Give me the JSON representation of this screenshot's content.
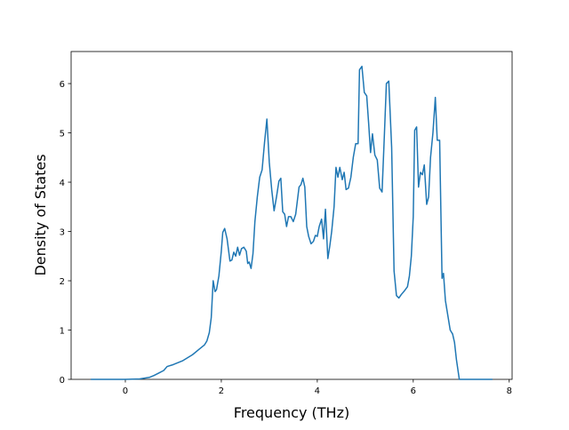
{
  "chart_data": {
    "type": "line",
    "xlabel": "Frequency (THz)",
    "ylabel": "Density of States",
    "xlim": [
      -1.13,
      8.06
    ],
    "ylim": [
      0,
      6.65
    ],
    "xticks": [
      0,
      2,
      4,
      6,
      8
    ],
    "yticks": [
      0,
      1,
      2,
      3,
      4,
      5,
      6
    ],
    "x": [
      -0.72,
      0,
      0.3,
      0.5,
      0.6,
      0.7,
      0.8,
      0.87,
      1.0,
      1.2,
      1.4,
      1.55,
      1.65,
      1.7,
      1.75,
      1.79,
      1.83,
      1.87,
      1.9,
      1.95,
      2.0,
      2.03,
      2.07,
      2.12,
      2.18,
      2.22,
      2.26,
      2.3,
      2.34,
      2.38,
      2.42,
      2.47,
      2.52,
      2.55,
      2.58,
      2.62,
      2.66,
      2.7,
      2.75,
      2.8,
      2.85,
      2.9,
      2.95,
      3.0,
      3.05,
      3.1,
      3.15,
      3.2,
      3.24,
      3.28,
      3.32,
      3.36,
      3.4,
      3.45,
      3.5,
      3.55,
      3.62,
      3.66,
      3.7,
      3.74,
      3.78,
      3.82,
      3.87,
      3.92,
      3.96,
      4.0,
      4.04,
      4.09,
      4.13,
      4.17,
      4.22,
      4.26,
      4.3,
      4.35,
      4.39,
      4.43,
      4.47,
      4.52,
      4.56,
      4.6,
      4.65,
      4.7,
      4.75,
      4.8,
      4.85,
      4.88,
      4.93,
      4.98,
      5.03,
      5.07,
      5.11,
      5.15,
      5.2,
      5.25,
      5.3,
      5.35,
      5.4,
      5.44,
      5.49,
      5.55,
      5.6,
      5.65,
      5.7,
      5.75,
      5.82,
      5.88,
      5.92,
      5.96,
      6.0,
      6.03,
      6.07,
      6.11,
      6.15,
      6.19,
      6.23,
      6.28,
      6.32,
      6.36,
      6.41,
      6.46,
      6.5,
      6.55,
      6.6,
      6.63,
      6.67,
      6.72,
      6.77,
      6.82,
      6.86,
      6.9,
      6.96,
      7.65
    ],
    "series": [
      {
        "color": "#1f77b4",
        "values": [
          0,
          0,
          0.01,
          0.04,
          0.08,
          0.13,
          0.18,
          0.26,
          0.3,
          0.38,
          0.5,
          0.62,
          0.7,
          0.78,
          0.95,
          1.25,
          2.0,
          1.78,
          1.82,
          2.1,
          2.6,
          2.98,
          3.06,
          2.85,
          2.4,
          2.42,
          2.58,
          2.5,
          2.68,
          2.52,
          2.65,
          2.68,
          2.6,
          2.35,
          2.38,
          2.25,
          2.55,
          3.2,
          3.7,
          4.1,
          4.25,
          4.8,
          5.28,
          4.4,
          3.85,
          3.42,
          3.7,
          4.02,
          4.08,
          3.4,
          3.35,
          3.1,
          3.3,
          3.3,
          3.2,
          3.35,
          3.9,
          3.95,
          4.08,
          3.9,
          3.1,
          2.9,
          2.75,
          2.8,
          2.92,
          2.9,
          3.1,
          3.25,
          2.85,
          3.45,
          2.45,
          2.7,
          3.0,
          3.5,
          4.3,
          4.1,
          4.3,
          4.05,
          4.2,
          3.85,
          3.88,
          4.1,
          4.5,
          4.78,
          4.78,
          6.28,
          6.35,
          5.82,
          5.75,
          5.2,
          4.6,
          4.98,
          4.55,
          4.45,
          3.88,
          3.8,
          5.0,
          6.0,
          6.05,
          4.7,
          2.2,
          1.7,
          1.65,
          1.72,
          1.8,
          1.88,
          2.1,
          2.5,
          3.3,
          5.05,
          5.12,
          3.9,
          4.2,
          4.15,
          4.35,
          3.55,
          3.7,
          4.5,
          5.0,
          5.72,
          4.85,
          4.85,
          2.05,
          2.15,
          1.6,
          1.3,
          1.0,
          0.92,
          0.75,
          0.4,
          0,
          0
        ]
      }
    ]
  }
}
